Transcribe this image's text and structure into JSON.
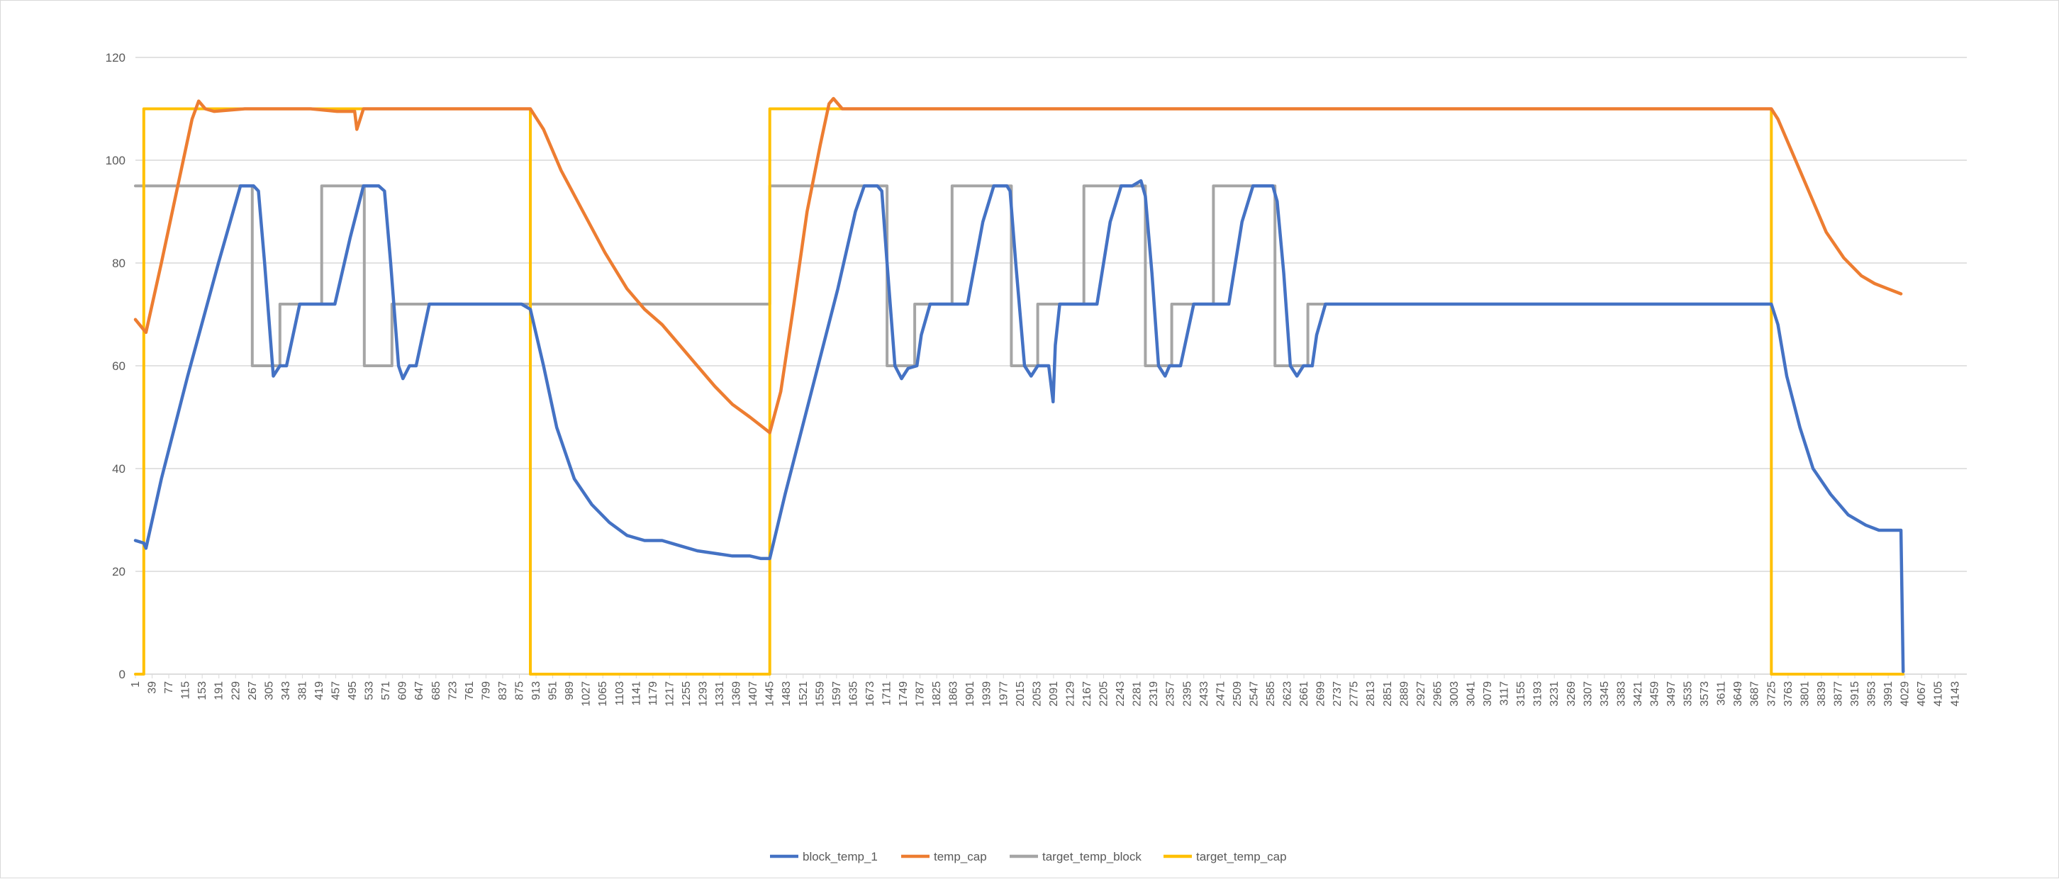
{
  "chart_data": {
    "type": "line",
    "title": "",
    "xlabel": "",
    "ylabel": "",
    "ylim": [
      0,
      120
    ],
    "yticks": [
      0,
      20,
      40,
      60,
      80,
      100,
      120
    ],
    "x_tick_start": 1,
    "x_tick_step": 38,
    "x_max": 4170,
    "grid": true,
    "legend_position": "bottom",
    "series": [
      {
        "name": "block_temp_1",
        "color": "#4472c4",
        "points": [
          [
            1,
            26
          ],
          [
            20,
            25.5
          ],
          [
            25,
            24.5
          ],
          [
            60,
            38
          ],
          [
            120,
            58
          ],
          [
            190,
            80
          ],
          [
            240,
            95
          ],
          [
            270,
            95
          ],
          [
            281,
            94
          ],
          [
            295,
            80
          ],
          [
            315,
            58
          ],
          [
            330,
            60
          ],
          [
            345,
            60
          ],
          [
            360,
            66
          ],
          [
            375,
            72
          ],
          [
            455,
            72
          ],
          [
            490,
            85
          ],
          [
            520,
            95
          ],
          [
            555,
            95
          ],
          [
            568,
            94
          ],
          [
            582,
            80
          ],
          [
            600,
            60
          ],
          [
            610,
            57.5
          ],
          [
            625,
            60
          ],
          [
            640,
            60
          ],
          [
            655,
            66
          ],
          [
            670,
            72
          ],
          [
            880,
            72
          ],
          [
            900,
            71
          ],
          [
            930,
            60
          ],
          [
            960,
            48
          ],
          [
            1000,
            38
          ],
          [
            1040,
            33
          ],
          [
            1080,
            29.5
          ],
          [
            1120,
            27
          ],
          [
            1160,
            26
          ],
          [
            1200,
            26
          ],
          [
            1240,
            25
          ],
          [
            1280,
            24
          ],
          [
            1320,
            23.5
          ],
          [
            1360,
            23
          ],
          [
            1400,
            23
          ],
          [
            1425,
            22.5
          ],
          [
            1445,
            22.5
          ],
          [
            1480,
            35
          ],
          [
            1540,
            55
          ],
          [
            1600,
            75
          ],
          [
            1640,
            90
          ],
          [
            1660,
            95
          ],
          [
            1690,
            95
          ],
          [
            1700,
            94
          ],
          [
            1712,
            80
          ],
          [
            1730,
            60
          ],
          [
            1745,
            57.5
          ],
          [
            1760,
            59.5
          ],
          [
            1780,
            60
          ],
          [
            1790,
            66
          ],
          [
            1810,
            72
          ],
          [
            1895,
            72
          ],
          [
            1930,
            88
          ],
          [
            1955,
            95
          ],
          [
            1985,
            95
          ],
          [
            1992,
            94
          ],
          [
            2005,
            80
          ],
          [
            2025,
            60
          ],
          [
            2040,
            58
          ],
          [
            2055,
            60
          ],
          [
            2080,
            60
          ],
          [
            2090,
            53
          ],
          [
            2095,
            64
          ],
          [
            2105,
            72
          ],
          [
            2190,
            72
          ],
          [
            2220,
            88
          ],
          [
            2245,
            95
          ],
          [
            2270,
            95
          ],
          [
            2290,
            96
          ],
          [
            2300,
            93
          ],
          [
            2315,
            78
          ],
          [
            2330,
            60
          ],
          [
            2345,
            58
          ],
          [
            2355,
            60
          ],
          [
            2380,
            60
          ],
          [
            2395,
            66
          ],
          [
            2410,
            72
          ],
          [
            2490,
            72
          ],
          [
            2520,
            88
          ],
          [
            2545,
            95
          ],
          [
            2575,
            95
          ],
          [
            2590,
            95
          ],
          [
            2600,
            92
          ],
          [
            2615,
            78
          ],
          [
            2630,
            60
          ],
          [
            2645,
            58
          ],
          [
            2660,
            60
          ],
          [
            2680,
            60
          ],
          [
            2690,
            66
          ],
          [
            2710,
            72
          ],
          [
            3710,
            72
          ],
          [
            3725,
            72
          ],
          [
            3740,
            68
          ],
          [
            3760,
            58
          ],
          [
            3790,
            48
          ],
          [
            3820,
            40
          ],
          [
            3860,
            35
          ],
          [
            3900,
            31
          ],
          [
            3940,
            29
          ],
          [
            3970,
            28
          ],
          [
            4000,
            28
          ],
          [
            4020,
            28
          ],
          [
            4025,
            0.5
          ]
        ]
      },
      {
        "name": "temp_cap",
        "color": "#ed7d31",
        "points": [
          [
            1,
            69
          ],
          [
            20,
            67
          ],
          [
            25,
            66.5
          ],
          [
            60,
            80
          ],
          [
            100,
            96
          ],
          [
            130,
            108
          ],
          [
            145,
            111.5
          ],
          [
            160,
            110
          ],
          [
            180,
            109.5
          ],
          [
            250,
            110
          ],
          [
            400,
            110
          ],
          [
            460,
            109.5
          ],
          [
            500,
            109.5
          ],
          [
            505,
            106
          ],
          [
            520,
            110
          ],
          [
            880,
            110
          ],
          [
            900,
            110
          ],
          [
            930,
            106
          ],
          [
            970,
            98
          ],
          [
            1020,
            90
          ],
          [
            1070,
            82
          ],
          [
            1120,
            75
          ],
          [
            1160,
            71
          ],
          [
            1200,
            68
          ],
          [
            1240,
            64
          ],
          [
            1280,
            60
          ],
          [
            1320,
            56
          ],
          [
            1360,
            52.5
          ],
          [
            1400,
            50
          ],
          [
            1430,
            48
          ],
          [
            1445,
            47
          ],
          [
            1470,
            55
          ],
          [
            1500,
            72
          ],
          [
            1530,
            90
          ],
          [
            1560,
            103
          ],
          [
            1580,
            111
          ],
          [
            1590,
            112
          ],
          [
            1610,
            110
          ],
          [
            1700,
            110
          ],
          [
            2000,
            110
          ],
          [
            2500,
            110
          ],
          [
            3000,
            110
          ],
          [
            3500,
            110
          ],
          [
            3700,
            110
          ],
          [
            3725,
            110
          ],
          [
            3740,
            108
          ],
          [
            3770,
            102
          ],
          [
            3810,
            94
          ],
          [
            3850,
            86
          ],
          [
            3890,
            81
          ],
          [
            3930,
            77.5
          ],
          [
            3960,
            76
          ],
          [
            3990,
            75
          ],
          [
            4020,
            74
          ]
        ]
      },
      {
        "name": "target_temp_block",
        "color": "#a5a5a5",
        "points": [
          [
            1,
            95
          ],
          [
            267,
            95
          ],
          [
            267,
            60
          ],
          [
            330,
            60
          ],
          [
            330,
            72
          ],
          [
            425,
            72
          ],
          [
            425,
            95
          ],
          [
            522,
            95
          ],
          [
            522,
            60
          ],
          [
            585,
            60
          ],
          [
            585,
            72
          ],
          [
            900,
            72
          ],
          [
            1445,
            72
          ],
          [
            1445,
            95
          ],
          [
            1712,
            95
          ],
          [
            1712,
            60
          ],
          [
            1775,
            60
          ],
          [
            1775,
            72
          ],
          [
            1860,
            72
          ],
          [
            1860,
            95
          ],
          [
            1995,
            95
          ],
          [
            1995,
            60
          ],
          [
            2055,
            60
          ],
          [
            2055,
            72
          ],
          [
            2160,
            72
          ],
          [
            2160,
            95
          ],
          [
            2300,
            95
          ],
          [
            2300,
            60
          ],
          [
            2360,
            60
          ],
          [
            2360,
            72
          ],
          [
            2455,
            72
          ],
          [
            2455,
            95
          ],
          [
            2595,
            95
          ],
          [
            2595,
            60
          ],
          [
            2670,
            60
          ],
          [
            2670,
            72
          ],
          [
            3725,
            72
          ]
        ]
      },
      {
        "name": "target_temp_cap",
        "color": "#ffc000",
        "points": [
          [
            1,
            0
          ],
          [
            20,
            0
          ],
          [
            20,
            110
          ],
          [
            900,
            110
          ],
          [
            900,
            0
          ],
          [
            1445,
            0
          ],
          [
            1445,
            110
          ],
          [
            3725,
            110
          ],
          [
            3725,
            0
          ],
          [
            4025,
            0
          ]
        ]
      }
    ]
  }
}
